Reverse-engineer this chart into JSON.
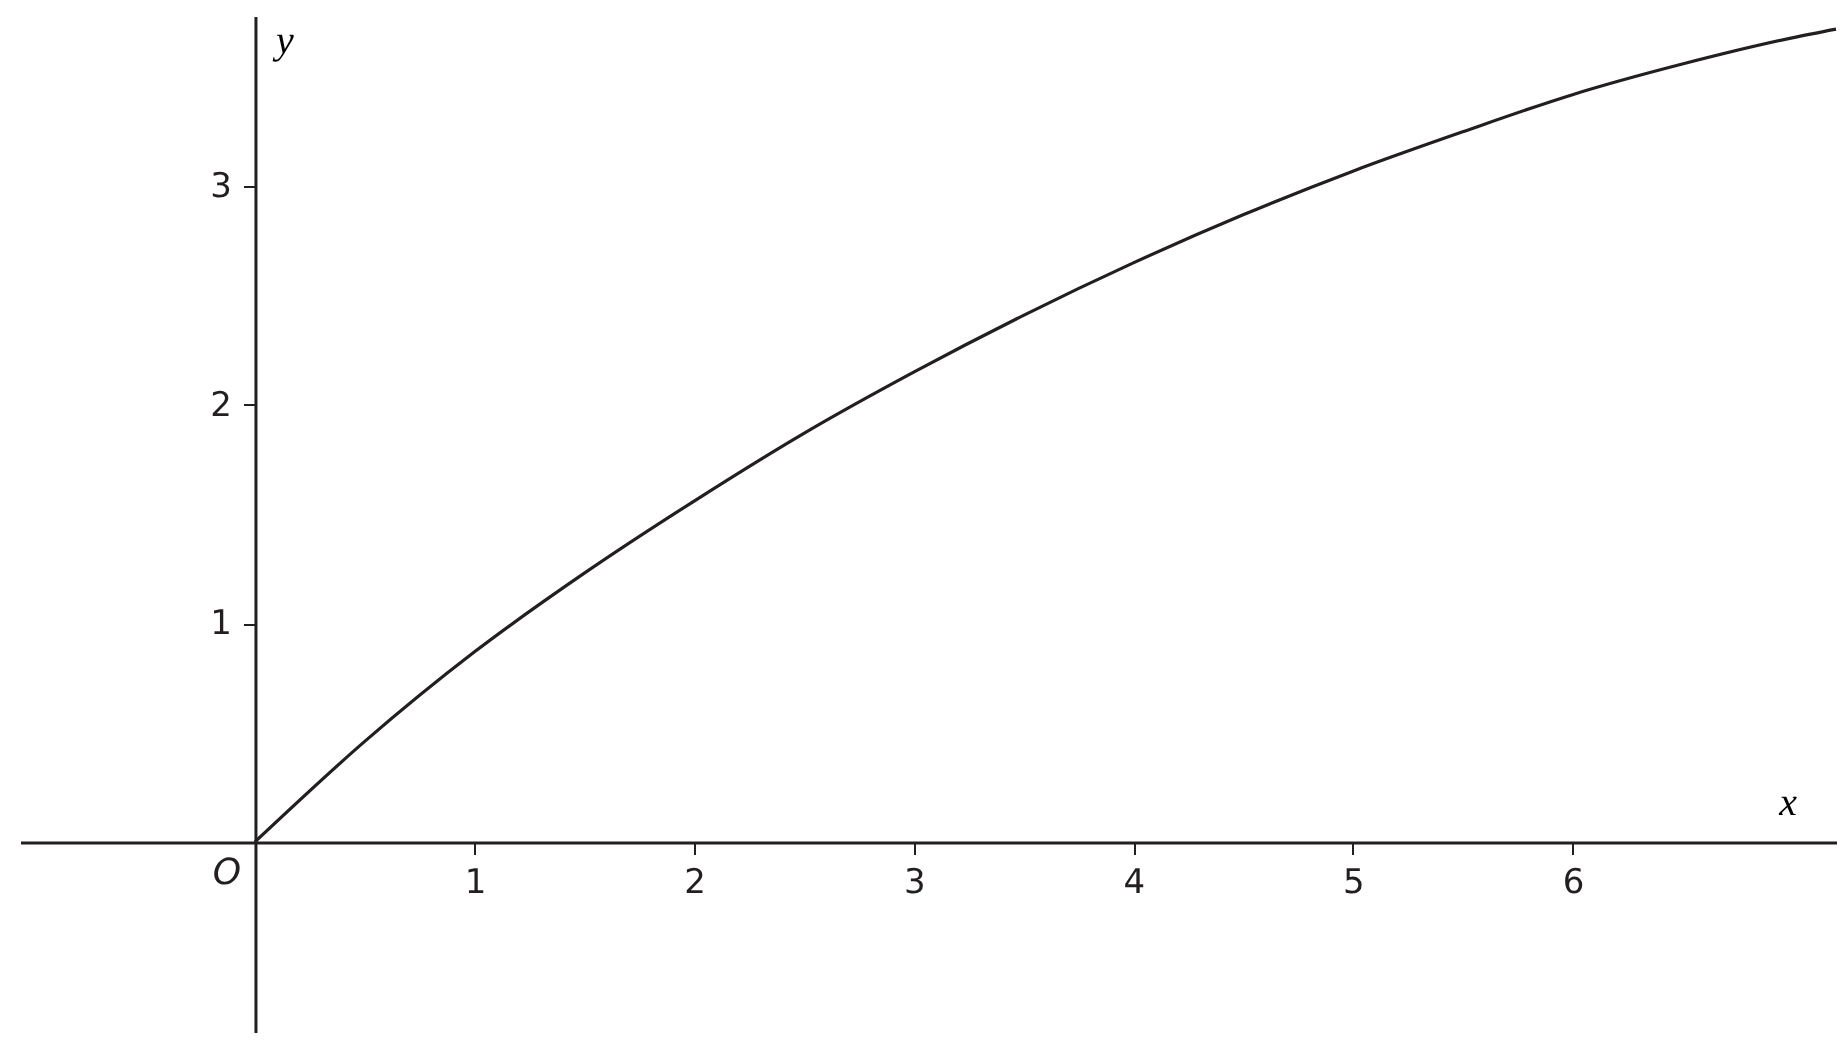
{
  "chart_data": {
    "type": "line",
    "xlabel": "x",
    "ylabel": "y",
    "x": [
      0,
      0.5,
      1,
      1.5,
      2,
      2.5,
      3,
      3.5,
      4,
      4.5,
      5,
      5.5,
      6,
      6.5,
      7,
      7.2
    ],
    "series": [
      {
        "color": "#231f20",
        "values": [
          0,
          0.46,
          0.87,
          1.23,
          1.56,
          1.87,
          2.15,
          2.41,
          2.65,
          2.87,
          3.07,
          3.25,
          3.42,
          3.56,
          3.68,
          3.72
        ]
      }
    ],
    "xlim": [
      -1.07,
      7.2
    ],
    "ylim": [
      -0.87,
      3.78
    ],
    "xticks": [
      1,
      2,
      3,
      4,
      5,
      6
    ],
    "yticks": [
      1,
      2,
      3
    ],
    "grid": false,
    "marker": "none",
    "line_style": "solid",
    "annotations": [
      {
        "text": "O",
        "x": 0,
        "y": 0
      }
    ]
  }
}
